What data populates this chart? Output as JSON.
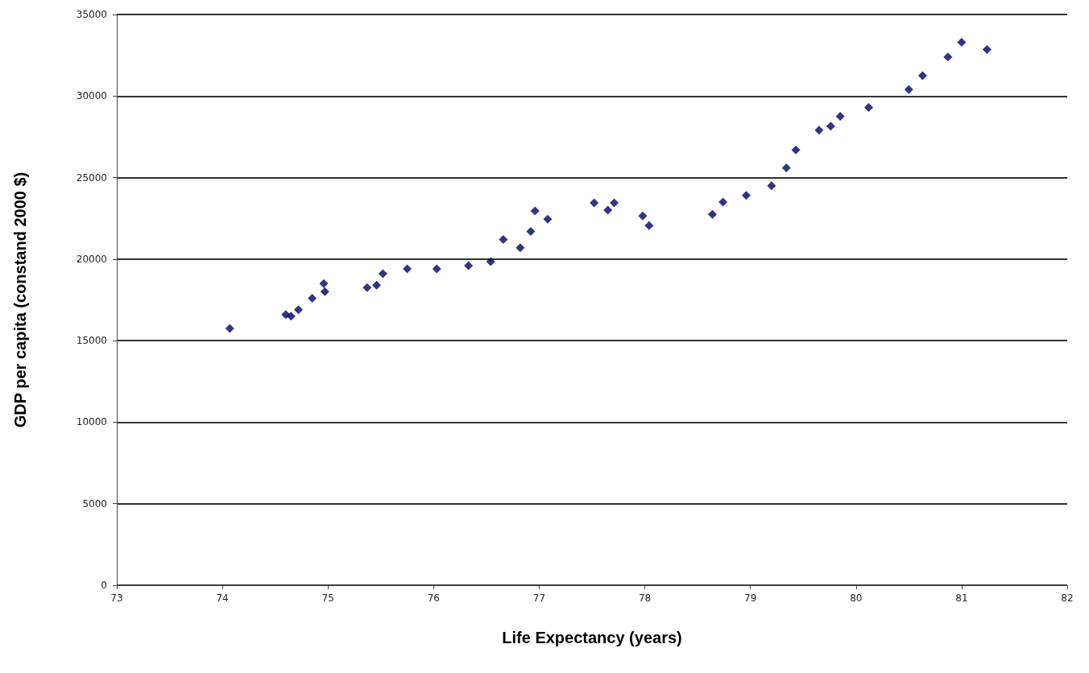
{
  "chart_data": {
    "type": "scatter",
    "xlabel": "Life Expectancy (years)",
    "ylabel": "GDP per capita (constand 2000 $)",
    "x": [
      74.07,
      74.6,
      74.65,
      74.72,
      74.85,
      74.96,
      74.97,
      75.37,
      75.46,
      75.52,
      75.75,
      76.03,
      76.33,
      76.54,
      76.66,
      76.82,
      76.92,
      76.96,
      77.08,
      77.52,
      77.65,
      77.71,
      77.98,
      78.04,
      78.64,
      78.74,
      78.96,
      79.2,
      79.34,
      79.43,
      79.65,
      79.76,
      79.85,
      80.12,
      80.5,
      80.63,
      80.87,
      81.0,
      81.24
    ],
    "values": [
      15750,
      16600,
      16500,
      16900,
      17600,
      18500,
      18000,
      18250,
      18400,
      19100,
      19400,
      19400,
      19600,
      19850,
      21200,
      20700,
      21700,
      22950,
      22450,
      23450,
      23000,
      23450,
      22650,
      22050,
      22750,
      23500,
      23900,
      24500,
      25600,
      26700,
      27900,
      28150,
      28750,
      29300,
      30400,
      31250,
      32400,
      33300,
      32850
    ],
    "color": "#000066",
    "marker": "diamond",
    "xlim": [
      73,
      82
    ],
    "xticks": [
      73,
      74,
      75,
      76,
      77,
      78,
      79,
      80,
      81,
      82
    ],
    "ylim": [
      0,
      35000
    ],
    "yticks": [
      0,
      5000,
      10000,
      15000,
      20000,
      25000,
      30000,
      35000
    ],
    "grid": "y"
  }
}
